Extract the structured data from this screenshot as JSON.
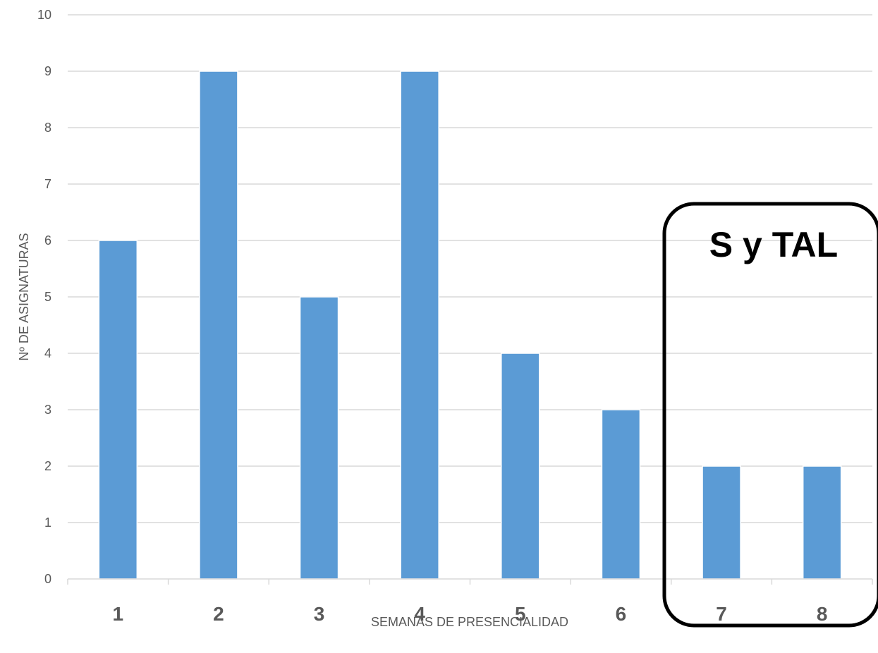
{
  "chart_data": {
    "type": "bar",
    "title": "",
    "xlabel": "SEMANAS DE PRESENCIALIDAD",
    "ylabel": "Nº DE ASIGNATURAS",
    "categories": [
      "1",
      "2",
      "3",
      "4",
      "5",
      "6",
      "7",
      "8"
    ],
    "values": [
      6,
      9,
      5,
      9,
      4,
      3,
      2,
      2
    ],
    "ylim": [
      0,
      10
    ],
    "yticks": [
      "0",
      "1",
      "2",
      "3",
      "4",
      "5",
      "6",
      "7",
      "8",
      "9",
      "10"
    ],
    "grid": "horizontal",
    "legend": "none",
    "annotation": {
      "text": "S y TAL",
      "encloses_categories": [
        "7",
        "8"
      ]
    },
    "colors": {
      "bar": "#5B9BD5",
      "grid": "#D9D9D9",
      "axis": "#D9D9D9",
      "text": "#595959",
      "annotation_box": "#000000"
    }
  }
}
